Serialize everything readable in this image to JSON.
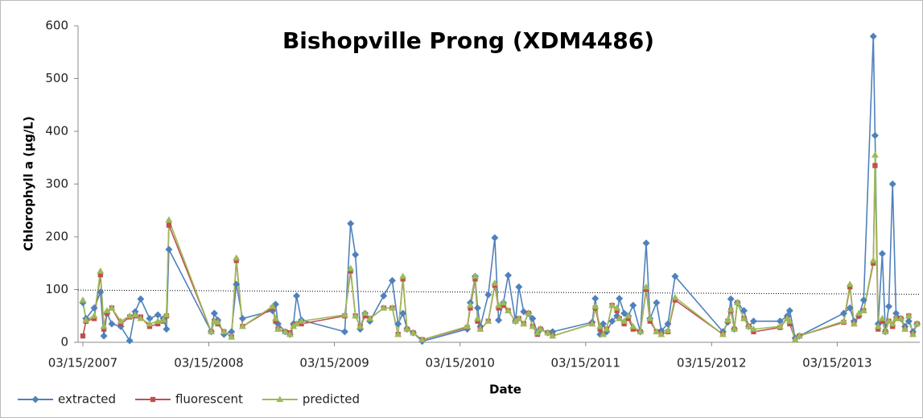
{
  "chart_data": {
    "type": "line",
    "title": "Bishopville Prong (XDM4486)",
    "x_label": "Date",
    "y_label": "Chlorophyll a (µg/L)",
    "legend": "bottom-left",
    "x": [
      "2007-03-15",
      "2007-03-24",
      "2007-04-17",
      "2007-05-05",
      "2007-05-15",
      "2007-05-24",
      "2007-06-07",
      "2007-07-03",
      "2007-07-29",
      "2007-08-14",
      "2007-08-30",
      "2007-09-25",
      "2007-10-19",
      "2007-11-04",
      "2007-11-13",
      "2007-11-20",
      "2008-03-22",
      "2008-03-31",
      "2008-04-10",
      "2008-04-28",
      "2008-05-20",
      "2008-06-03",
      "2008-06-21",
      "2008-09-16",
      "2008-09-25",
      "2008-10-02",
      "2008-10-23",
      "2008-11-06",
      "2008-11-16",
      "2008-11-25",
      "2008-12-09",
      "2009-04-14",
      "2009-05-01",
      "2009-05-15",
      "2009-05-29",
      "2009-06-12",
      "2009-06-26",
      "2009-08-05",
      "2009-08-30",
      "2009-09-16",
      "2009-09-30",
      "2009-10-12",
      "2009-10-30",
      "2009-11-25",
      "2010-04-05",
      "2010-04-14",
      "2010-04-28",
      "2010-05-05",
      "2010-05-13",
      "2010-06-05",
      "2010-06-24",
      "2010-07-05",
      "2010-07-19",
      "2010-08-02",
      "2010-08-23",
      "2010-09-02",
      "2010-09-16",
      "2010-09-30",
      "2010-10-12",
      "2010-10-26",
      "2010-11-04",
      "2010-11-25",
      "2010-12-09",
      "2011-04-03",
      "2011-04-12",
      "2011-04-26",
      "2011-05-05",
      "2011-05-15",
      "2011-05-31",
      "2011-06-14",
      "2011-06-21",
      "2011-07-05",
      "2011-07-17",
      "2011-07-31",
      "2011-08-21",
      "2011-09-07",
      "2011-09-18",
      "2011-10-07",
      "2011-10-21",
      "2011-11-09",
      "2011-11-30",
      "2012-04-17",
      "2012-05-01",
      "2012-05-10",
      "2012-05-20",
      "2012-05-29",
      "2012-06-17",
      "2012-07-01",
      "2012-07-15",
      "2012-09-30",
      "2012-10-21",
      "2012-10-28",
      "2012-11-13",
      "2012-11-25",
      "2013-04-03",
      "2013-04-21",
      "2013-05-03",
      "2013-05-17",
      "2013-05-31",
      "2013-06-28",
      "2013-07-03",
      "2013-07-12",
      "2013-07-24",
      "2013-08-02",
      "2013-08-12",
      "2013-08-23",
      "2013-09-02",
      "2013-09-16",
      "2013-09-28",
      "2013-10-09",
      "2013-10-21",
      "2013-11-02"
    ],
    "series": [
      {
        "name": "extracted",
        "color": "#4f81bd",
        "marker": "diamond",
        "values": [
          75,
          45,
          65,
          95,
          12,
          55,
          35,
          30,
          3,
          58,
          82,
          45,
          52,
          45,
          25,
          176,
          20,
          55,
          42,
          15,
          20,
          110,
          45,
          60,
          72,
          35,
          20,
          15,
          35,
          88,
          42,
          20,
          225,
          166,
          25,
          55,
          40,
          88,
          117,
          35,
          55,
          25,
          18,
          2,
          25,
          75,
          125,
          65,
          30,
          90,
          198,
          42,
          75,
          127,
          40,
          105,
          58,
          55,
          45,
          18,
          25,
          18,
          20,
          38,
          83,
          15,
          35,
          20,
          40,
          50,
          83,
          55,
          50,
          70,
          20,
          188,
          45,
          75,
          22,
          35,
          125,
          20,
          38,
          82,
          25,
          75,
          60,
          30,
          40,
          40,
          50,
          60,
          8,
          12,
          55,
          65,
          40,
          50,
          80,
          580,
          392,
          35,
          168,
          20,
          68,
          300,
          55,
          45,
          30,
          40,
          20,
          35
        ]
      },
      {
        "name": "fluorescent",
        "color": "#c0504d",
        "marker": "square",
        "values": [
          12,
          40,
          45,
          128,
          25,
          55,
          65,
          35,
          48,
          50,
          48,
          30,
          35,
          40,
          50,
          222,
          20,
          40,
          35,
          20,
          10,
          155,
          30,
          65,
          40,
          25,
          20,
          18,
          30,
          35,
          35,
          50,
          135,
          50,
          30,
          50,
          45,
          65,
          65,
          15,
          120,
          25,
          18,
          5,
          28,
          65,
          120,
          40,
          25,
          40,
          108,
          65,
          70,
          60,
          40,
          45,
          35,
          55,
          30,
          15,
          25,
          18,
          12,
          35,
          65,
          25,
          15,
          25,
          70,
          60,
          45,
          35,
          45,
          25,
          20,
          100,
          40,
          20,
          15,
          20,
          80,
          15,
          40,
          60,
          25,
          75,
          45,
          30,
          20,
          28,
          45,
          35,
          5,
          12,
          38,
          105,
          35,
          50,
          60,
          150,
          335,
          25,
          40,
          20,
          40,
          30,
          45,
          45,
          25,
          50,
          15,
          35
        ]
      },
      {
        "name": "predicted",
        "color": "#9bbb59",
        "marker": "triangle",
        "values": [
          80,
          42,
          50,
          135,
          30,
          60,
          65,
          40,
          50,
          52,
          45,
          35,
          40,
          42,
          52,
          232,
          20,
          40,
          38,
          20,
          10,
          160,
          30,
          68,
          45,
          25,
          20,
          15,
          30,
          35,
          40,
          52,
          140,
          50,
          30,
          55,
          45,
          65,
          65,
          15,
          125,
          25,
          18,
          5,
          30,
          70,
          125,
          45,
          25,
          40,
          112,
          70,
          75,
          60,
          40,
          45,
          35,
          55,
          30,
          18,
          25,
          18,
          12,
          35,
          68,
          30,
          15,
          25,
          70,
          65,
          45,
          40,
          50,
          30,
          20,
          105,
          45,
          20,
          15,
          22,
          85,
          15,
          42,
          62,
          25,
          75,
          45,
          30,
          25,
          30,
          45,
          40,
          5,
          12,
          40,
          110,
          35,
          55,
          60,
          155,
          355,
          30,
          45,
          20,
          40,
          35,
          45,
          45,
          25,
          50,
          15,
          35
        ]
      }
    ],
    "reference_line": {
      "x": [
        "2007-03-01",
        "2013-11-10"
      ],
      "values": [
        99,
        91
      ]
    },
    "xlim": [
      "2007-03-01",
      "2013-11-10"
    ],
    "xticks": [
      {
        "value": "2007-03-15",
        "label": "03/15/2007"
      },
      {
        "value": "2008-03-15",
        "label": "03/15/2008"
      },
      {
        "value": "2009-03-15",
        "label": "03/15/2009"
      },
      {
        "value": "2010-03-15",
        "label": "03/15/2010"
      },
      {
        "value": "2011-03-15",
        "label": "03/15/2011"
      },
      {
        "value": "2012-03-15",
        "label": "03/15/2012"
      },
      {
        "value": "2013-03-15",
        "label": "03/15/2013"
      }
    ],
    "ylim": [
      0,
      600
    ],
    "yticks": [
      0,
      100,
      200,
      300,
      400,
      500,
      600
    ]
  }
}
